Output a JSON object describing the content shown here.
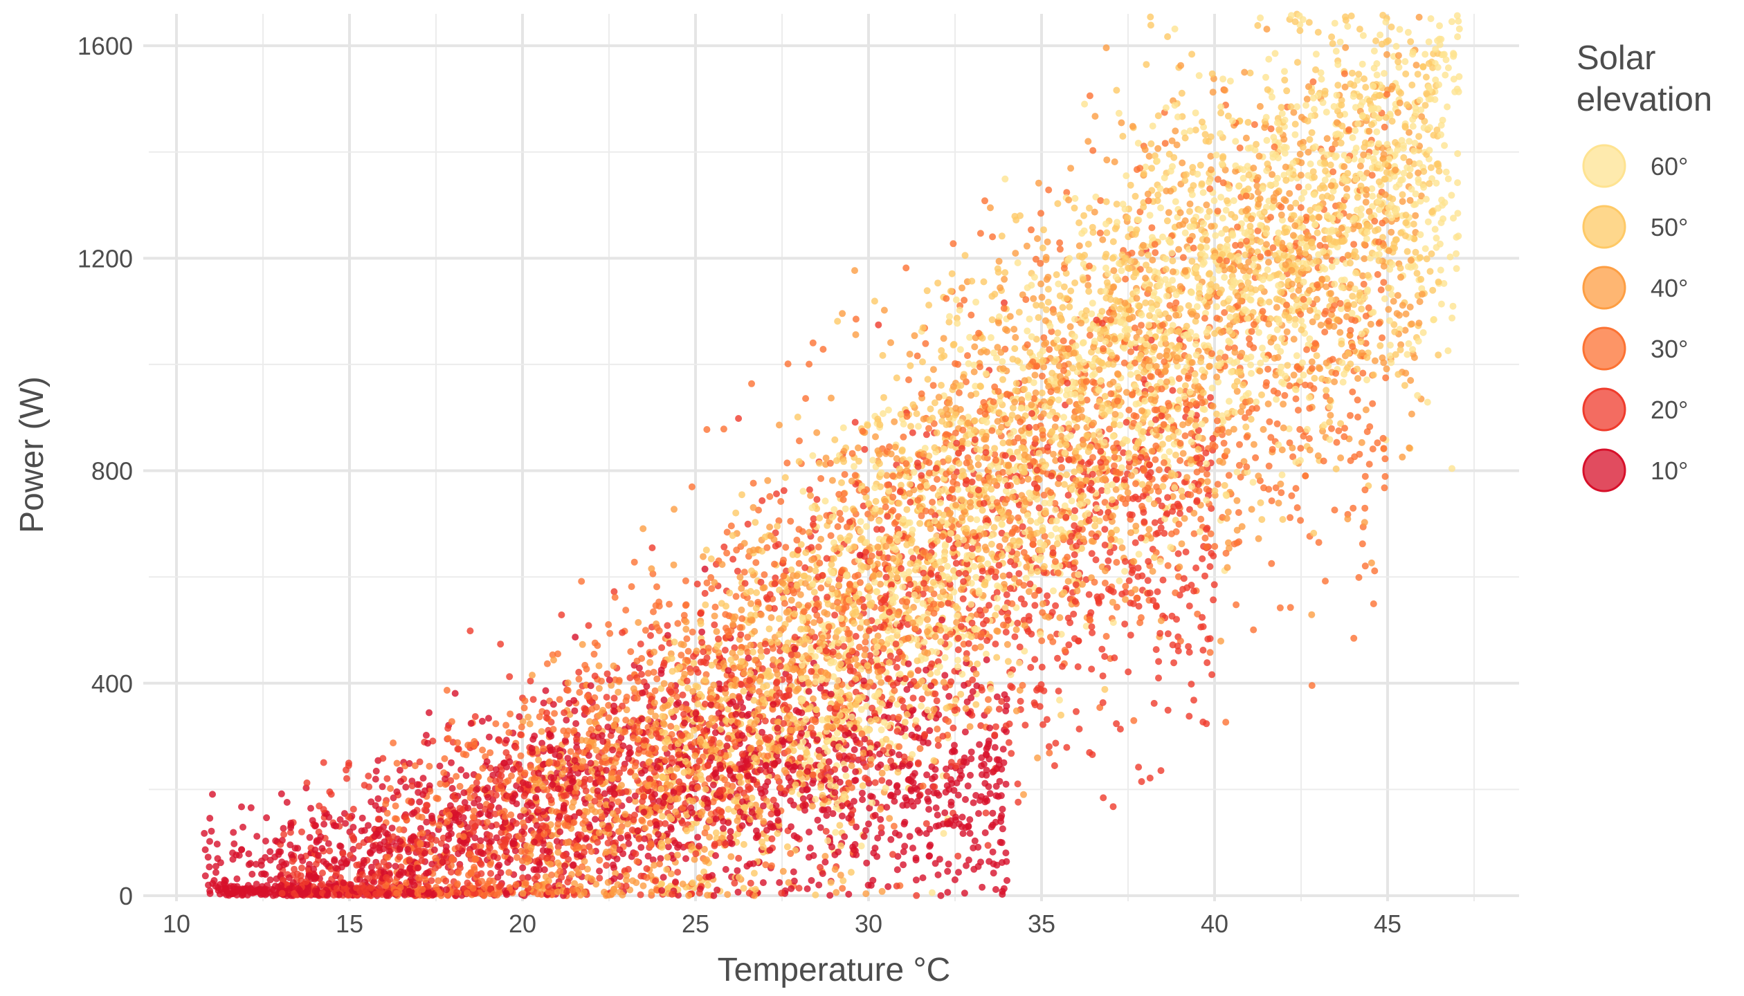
{
  "chart_data": {
    "type": "scatter",
    "title": "",
    "xlabel": "Temperature °C",
    "ylabel": "Power (W)",
    "xlim": [
      9.2,
      48.8
    ],
    "ylim": [
      0,
      1660
    ],
    "x_ticks": [
      10,
      15,
      20,
      25,
      30,
      35,
      40,
      45
    ],
    "x_tick_labels": [
      "10",
      "15",
      "20",
      "25",
      "30",
      "35",
      "40",
      "45"
    ],
    "y_ticks": [
      0,
      400,
      800,
      1200,
      1600
    ],
    "y_tick_labels": [
      "0",
      "400",
      "800",
      "1200",
      "1600"
    ],
    "grid": true,
    "legend": {
      "title_lines": [
        "Solar",
        "elevation"
      ],
      "placement": "right",
      "items": [
        {
          "label": "60°",
          "elevation": 60,
          "color": "#fee391"
        },
        {
          "label": "50°",
          "elevation": 50,
          "color": "#fec966"
        },
        {
          "label": "40°",
          "elevation": 40,
          "color": "#fd9e43"
        },
        {
          "label": "30°",
          "elevation": 30,
          "color": "#fc7233"
        },
        {
          "label": "20°",
          "elevation": 20,
          "color": "#ef3b2c"
        },
        {
          "label": "10°",
          "elevation": 10,
          "color": "#d7102a"
        }
      ]
    },
    "series": [
      {
        "elevation": 60,
        "color": "#fee391",
        "x_range": [
          28,
          47.1
        ],
        "power_center": {
          "x": [
            28,
            32,
            36,
            40,
            44,
            47
          ],
          "y": [
            380,
            620,
            900,
            1140,
            1330,
            1420
          ]
        },
        "power_spread": 190
      },
      {
        "elevation": 50,
        "color": "#fec966",
        "x_range": [
          24,
          46.5
        ],
        "power_center": {
          "x": [
            24,
            28,
            32,
            36,
            40,
            44,
            46.5
          ],
          "y": [
            230,
            440,
            700,
            960,
            1180,
            1320,
            1380
          ]
        },
        "power_spread": 200
      },
      {
        "elevation": 40,
        "color": "#fd9e43",
        "x_range": [
          20,
          46
        ],
        "power_center": {
          "x": [
            20,
            25,
            30,
            35,
            40,
            44,
            46
          ],
          "y": [
            90,
            260,
            560,
            870,
            1060,
            1200,
            1260
          ]
        },
        "power_spread": 210
      },
      {
        "elevation": 30,
        "color": "#fc7233",
        "x_range": [
          16,
          45
        ],
        "power_center": {
          "x": [
            16,
            20,
            25,
            30,
            35,
            40,
            45
          ],
          "y": [
            30,
            140,
            330,
            600,
            840,
            980,
            1060
          ]
        },
        "power_spread": 220
      },
      {
        "elevation": 20,
        "color": "#ef3b2c",
        "x_range": [
          13,
          40
        ],
        "power_center": {
          "x": [
            13,
            17,
            20,
            24,
            28,
            32,
            36,
            40
          ],
          "y": [
            5,
            60,
            140,
            260,
            400,
            520,
            620,
            700
          ]
        },
        "power_spread": 190
      },
      {
        "elevation": 10,
        "color": "#d7102a",
        "x_range": [
          10.8,
          34
        ],
        "power_center": {
          "x": [
            11,
            14,
            17,
            20,
            23,
            26,
            30,
            34
          ],
          "y": [
            0,
            25,
            80,
            160,
            200,
            220,
            220,
            200
          ]
        },
        "power_spread": 160
      }
    ]
  }
}
